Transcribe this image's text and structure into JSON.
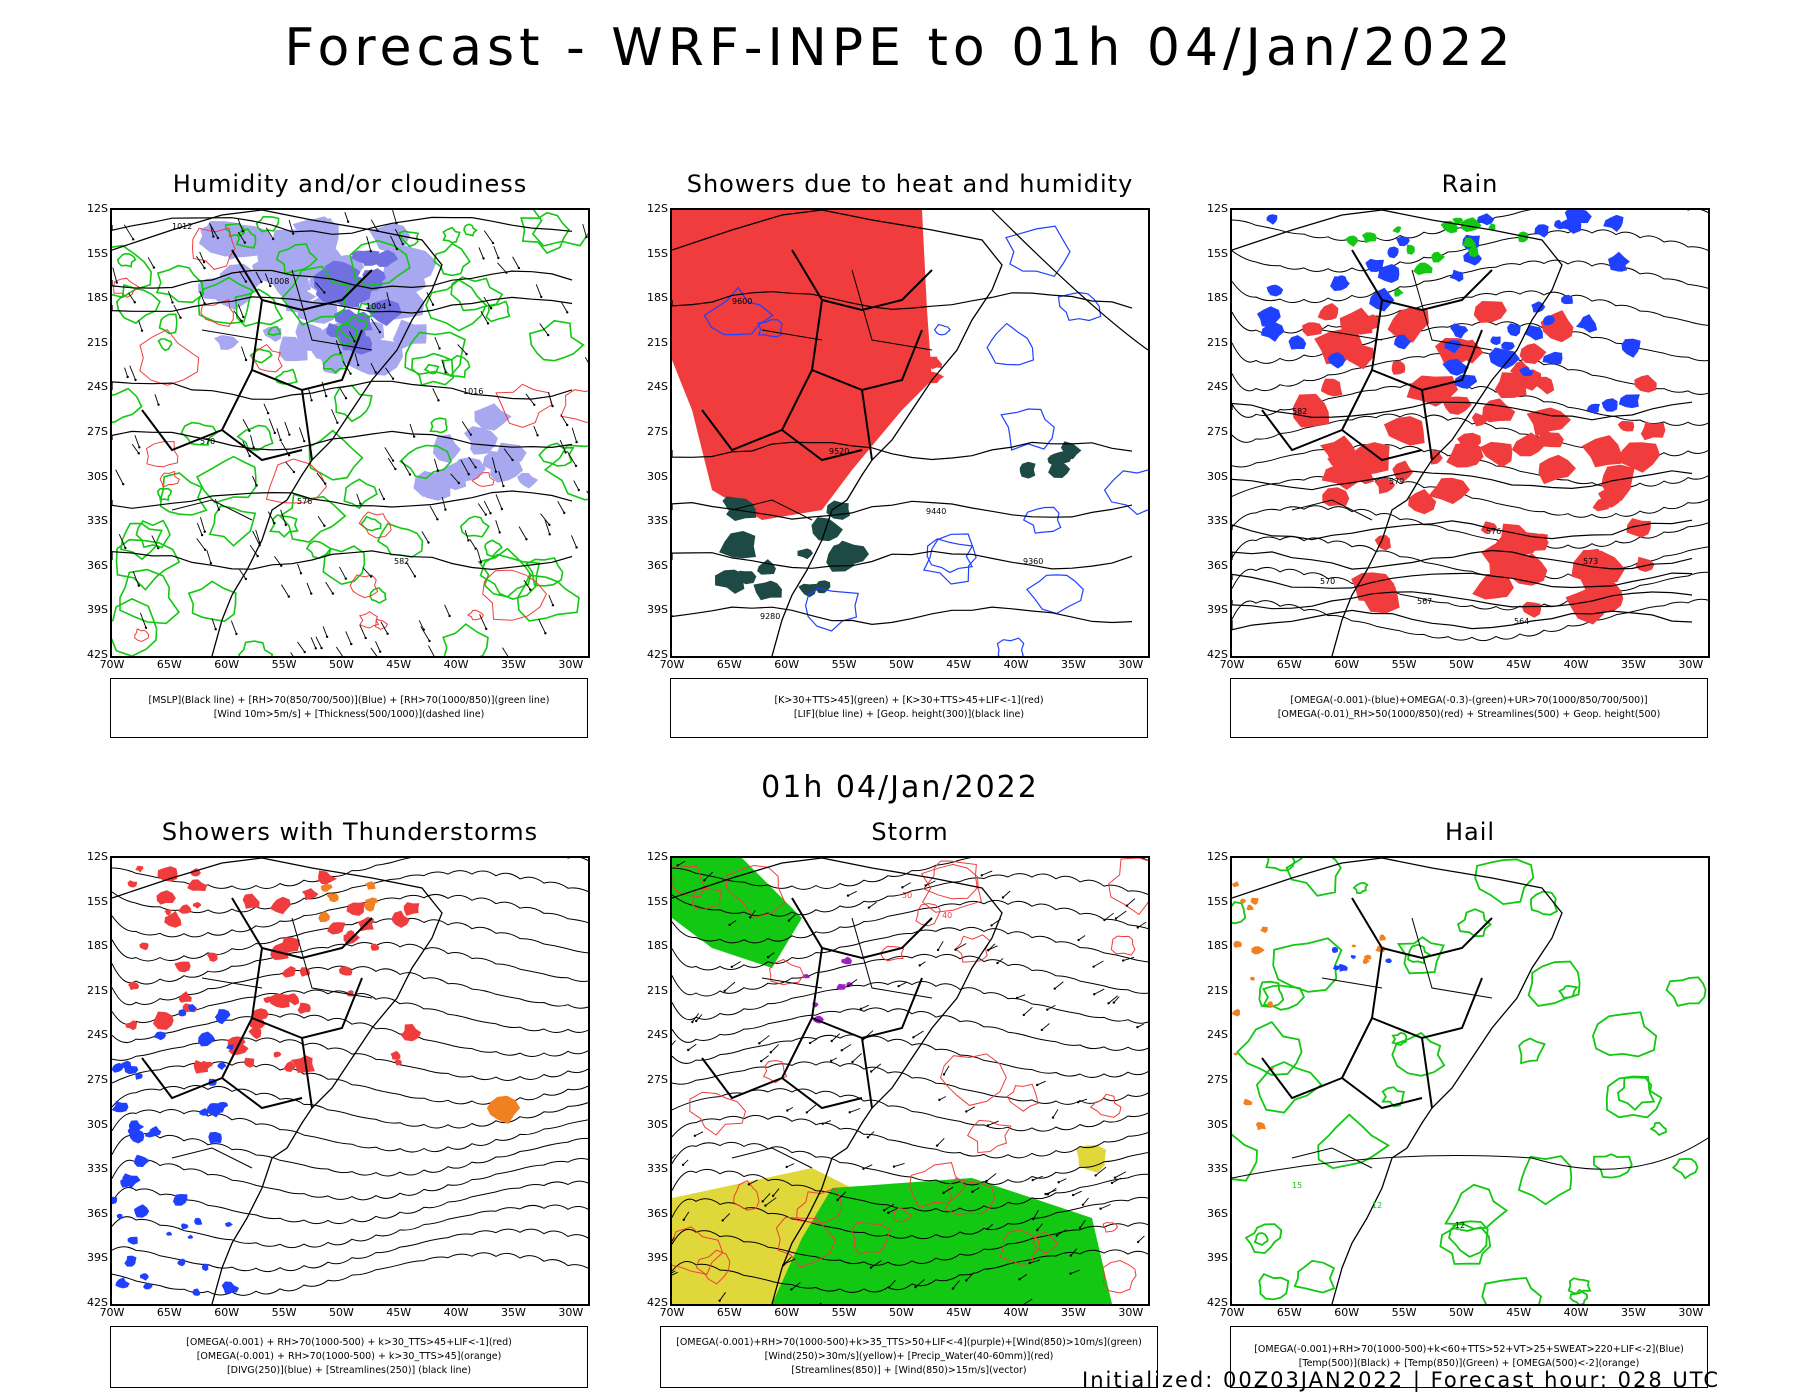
{
  "header": {
    "title": "Forecast - WRF-INPE to 01h 04/Jan/2022",
    "subtitle": "01h 04/Jan/2022"
  },
  "footer": {
    "text": "Initialized: 00Z03JAN2022 | Forecast hour: 028 UTC"
  },
  "axes": {
    "lat": [
      "12S",
      "15S",
      "18S",
      "21S",
      "24S",
      "27S",
      "30S",
      "33S",
      "36S",
      "39S",
      "42S"
    ],
    "lon": [
      "70W",
      "65W",
      "60W",
      "55W",
      "50W",
      "45W",
      "40W",
      "35W",
      "30W"
    ]
  },
  "panels": [
    {
      "id": "p1",
      "title": "Humidity and/or cloudiness",
      "legend": [
        "[MSLP](Black line) + [RH>70(850/700/500)](Blue) + [RH>70(1000/850)](green line)",
        "[Wind 10m>5m/s] + [Thickness(500/1000)](dashed line)"
      ],
      "labels": [
        "1012",
        "1008",
        "1004",
        "1016",
        "570",
        "576",
        "582"
      ]
    },
    {
      "id": "p2",
      "title": "Showers due to heat and humidity",
      "legend": [
        "[K>30+TTS>45](green) + [K>30+TTS>45+LIF<-1](red)",
        "[LIF](blue line) + [Geop. height(300)](black line)"
      ],
      "labels": [
        "9600",
        "9520",
        "9440",
        "9360",
        "9280"
      ]
    },
    {
      "id": "p3",
      "title": "Rain",
      "legend": [
        "[OMEGA(-0.001)-(blue)+OMEGA(-0.3)-(green)+UR>70(1000/850/700/500)]",
        "[OMEGA(-0.01)_RH>50(1000/850)(red) + Streamlines(500) + Geop. height(500)"
      ],
      "labels": [
        "582",
        "579",
        "576",
        "573",
        "570",
        "567",
        "564"
      ]
    },
    {
      "id": "p4",
      "title": "Showers with Thunderstorms",
      "legend": [
        "[OMEGA(-0.001) + RH>70(1000-500) + k>30_TTS>45+LIF<-1](red)",
        "[OMEGA(-0.001) + RH>70(1000-500) + k>30_TTS>45](orange)",
        "[DIVG(250)](blue) + [Streamlines(250)] (black line)"
      ],
      "labels": []
    },
    {
      "id": "p5",
      "title": "Storm",
      "legend": [
        "[OMEGA(-0.001)+RH>70(1000-500)+k>35_TTS>50+LIF<-4](purple)+[Wind(850)>10m/s](green)",
        "[Wind(250)>30m/s](yellow)+ [Precip_Water(40-60mm)](red)",
        "[Streamlines(850)] + [Wind(850)>15m/s](vector)"
      ],
      "labels": [
        "50",
        "40"
      ]
    },
    {
      "id": "p6",
      "title": "Hail",
      "legend": [
        "[OMEGA(-0.001)+RH>70(1000-500)+k<60+TTS>52+VT>25+SWEAT>220+LIF<-2](Blue)",
        "[Temp(500)](Black) + [Temp(850)](Green) + [OMEGA(500)<-2](orange)"
      ],
      "labels": [
        "15",
        "12",
        "-12"
      ]
    }
  ],
  "colors": {
    "red": "#f03c3c",
    "green": "#12c812",
    "blue": "#2040ff",
    "lavender": "#a8a8f0",
    "darkgreen": "#1e4a46",
    "orange": "#f08020",
    "purple": "#a020c0",
    "yellow": "#e0d83a"
  }
}
